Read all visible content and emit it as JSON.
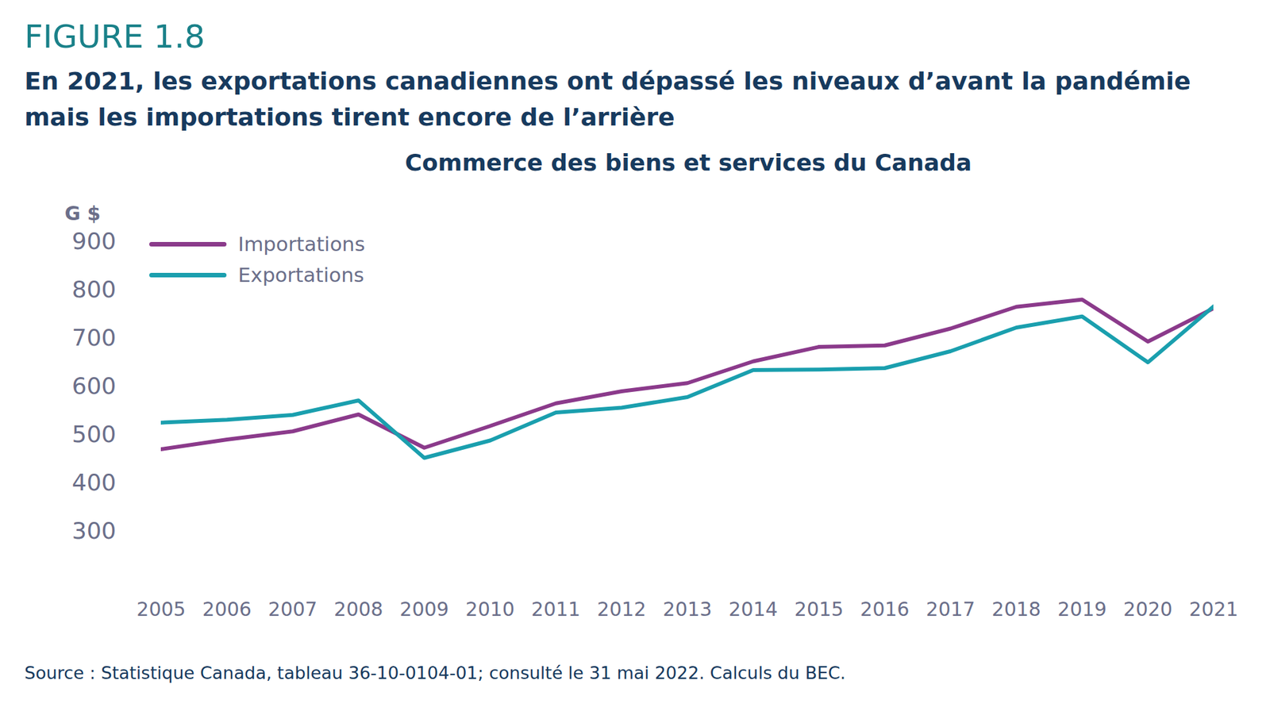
{
  "chart_data": {
    "type": "line",
    "figure": "FIGURE 1.8",
    "subtitle": "En 2021, les exportations canadiennes ont dépassé les niveaux d’avant la pandémie mais les importations tirent encore de l’arrière",
    "title": "Commerce des biens et services du Canada",
    "y_label": "G $",
    "source": "Source : Statistique Canada, tableau 36-10-0104-01; consulté le 31 mai 2022. Calculs du BEC.",
    "x": [
      2005,
      2006,
      2007,
      2008,
      2009,
      2010,
      2011,
      2012,
      2013,
      2014,
      2015,
      2016,
      2017,
      2018,
      2019,
      2020,
      2021
    ],
    "series": [
      {
        "name": "Importations",
        "color": "#8b3a8b",
        "values": [
          470,
          490,
          507,
          542,
          473,
          518,
          565,
          590,
          607,
          652,
          682,
          685,
          720,
          765,
          780,
          693,
          762
        ]
      },
      {
        "name": "Exportations",
        "color": "#1a9fae",
        "values": [
          525,
          531,
          541,
          571,
          452,
          488,
          546,
          556,
          578,
          634,
          635,
          638,
          673,
          722,
          745,
          650,
          766
        ]
      }
    ],
    "xlim": [
      2005,
      2021
    ],
    "xticks": [
      2005,
      2006,
      2007,
      2008,
      2009,
      2010,
      2011,
      2012,
      2013,
      2014,
      2015,
      2016,
      2017,
      2018,
      2019,
      2020,
      2021
    ],
    "ylim": [
      300,
      900
    ],
    "yticks": [
      300,
      400,
      500,
      600,
      700,
      800,
      900
    ],
    "grid": false,
    "legend": "top-left"
  }
}
